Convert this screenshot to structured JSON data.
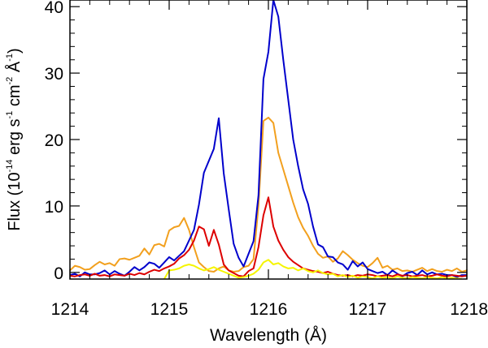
{
  "chart_data": {
    "type": "line",
    "title": "",
    "xlabel": "Wavelength (Å)",
    "ylabel_parts": {
      "prefix": "Flux (10",
      "exp1": "-14",
      "mid1": " erg s",
      "exp2": "-1",
      "mid2": " cm",
      "exp3": "-2",
      "mid3": " Å",
      "exp4": "-1",
      "suffix": ")"
    },
    "xlim": [
      1214,
      1218
    ],
    "ylim": [
      -1,
      41
    ],
    "xticks": [
      1214,
      1215,
      1216,
      1217,
      1218
    ],
    "xtick_labels": [
      "1214",
      "1215",
      "1216",
      "1217",
      "1218"
    ],
    "yticks": [
      0,
      10,
      20,
      30,
      40
    ],
    "ytick_labels": [
      "0",
      "10",
      "20",
      "30",
      "40"
    ],
    "grid": false,
    "series": [
      {
        "name": "orange",
        "color": "#f2a01e",
        "x": [
          1214.0,
          1214.05,
          1214.1,
          1214.15,
          1214.2,
          1214.25,
          1214.3,
          1214.35,
          1214.4,
          1214.45,
          1214.5,
          1214.55,
          1214.6,
          1214.65,
          1214.7,
          1214.75,
          1214.8,
          1214.85,
          1214.9,
          1214.95,
          1215.0,
          1215.05,
          1215.1,
          1215.15,
          1215.2,
          1215.25,
          1215.3,
          1215.35,
          1215.4,
          1215.45,
          1215.5,
          1215.55,
          1215.6,
          1215.65,
          1215.7,
          1215.75,
          1215.8,
          1215.85,
          1215.9,
          1215.95,
          1216.0,
          1216.05,
          1216.1,
          1216.15,
          1216.2,
          1216.25,
          1216.3,
          1216.35,
          1216.4,
          1216.45,
          1216.5,
          1216.55,
          1216.6,
          1216.65,
          1216.7,
          1216.75,
          1216.8,
          1216.85,
          1216.9,
          1216.95,
          1217.0,
          1217.05,
          1217.1,
          1217.15,
          1217.2,
          1217.25,
          1217.3,
          1217.35,
          1217.4,
          1217.45,
          1217.5,
          1217.55,
          1217.6,
          1217.65,
          1217.7,
          1217.75,
          1217.8,
          1217.85,
          1217.9,
          1217.95,
          1218.0
        ],
        "y": [
          0.3,
          1.0,
          0.8,
          0.4,
          0.5,
          1.1,
          1.6,
          1.2,
          1.4,
          1.0,
          2.0,
          2.1,
          1.9,
          2.2,
          2.5,
          3.6,
          2.7,
          4.1,
          4.3,
          3.9,
          6.3,
          6.8,
          7.0,
          8.2,
          6.4,
          3.8,
          1.5,
          0.8,
          0.2,
          0.1,
          0.6,
          0.9,
          0.3,
          0.1,
          0.2,
          0.8,
          1.0,
          2.0,
          10.0,
          22.8,
          23.3,
          22.5,
          18.0,
          15.5,
          13.0,
          10.5,
          8.3,
          6.7,
          5.5,
          4.0,
          2.8,
          2.2,
          2.4,
          1.6,
          2.1,
          3.2,
          2.6,
          1.9,
          1.4,
          1.0,
          0.8,
          1.4,
          2.2,
          0.7,
          1.0,
          0.4,
          0.6,
          0.2,
          0.3,
          0.1,
          0.4,
          0.7,
          0.2,
          0.5,
          0.2,
          0.1,
          0.4,
          0.2,
          0.6,
          0.1,
          0.3
        ]
      },
      {
        "name": "blue",
        "color": "#0000cc",
        "x": [
          1214.0,
          1214.05,
          1214.1,
          1214.15,
          1214.2,
          1214.25,
          1214.3,
          1214.35,
          1214.4,
          1214.45,
          1214.5,
          1214.55,
          1214.6,
          1214.65,
          1214.7,
          1214.75,
          1214.8,
          1214.85,
          1214.9,
          1214.95,
          1215.0,
          1215.05,
          1215.1,
          1215.15,
          1215.2,
          1215.25,
          1215.3,
          1215.35,
          1215.4,
          1215.45,
          1215.5,
          1215.55,
          1215.6,
          1215.65,
          1215.7,
          1215.75,
          1215.8,
          1215.85,
          1215.9,
          1215.95,
          1216.0,
          1216.05,
          1216.1,
          1216.15,
          1216.2,
          1216.25,
          1216.3,
          1216.35,
          1216.4,
          1216.45,
          1216.5,
          1216.55,
          1216.6,
          1216.65,
          1216.7,
          1216.75,
          1216.8,
          1216.85,
          1216.9,
          1216.95,
          1217.0,
          1217.05,
          1217.1,
          1217.15,
          1217.2,
          1217.25,
          1217.3,
          1217.35,
          1217.4,
          1217.45,
          1217.5,
          1217.55,
          1217.6,
          1217.65,
          1217.7,
          1217.75,
          1217.8,
          1217.85,
          1217.9,
          1217.95,
          1218.0
        ],
        "y": [
          -0.4,
          -0.2,
          -0.6,
          0.0,
          -0.3,
          -0.3,
          -0.1,
          0.3,
          -0.3,
          0.2,
          -0.2,
          -0.5,
          0.1,
          0.8,
          0.3,
          0.8,
          1.5,
          1.3,
          0.7,
          1.5,
          2.3,
          1.8,
          2.5,
          3.2,
          4.8,
          6.4,
          10.2,
          15.0,
          16.8,
          18.6,
          23.2,
          14.9,
          9.5,
          4.3,
          2.2,
          0.9,
          2.8,
          4.7,
          11.6,
          29.1,
          33.2,
          41.0,
          38.5,
          32.0,
          26.0,
          20.0,
          16.0,
          12.5,
          10.3,
          6.9,
          4.2,
          3.8,
          2.4,
          2.3,
          1.5,
          1.2,
          0.4,
          1.7,
          0.9,
          1.5,
          0.5,
          0.2,
          -0.1,
          0.1,
          -0.4,
          0.3,
          -0.2,
          -0.6,
          -0.1,
          0.1,
          -0.4,
          0.3,
          -0.3,
          0.0,
          -0.3,
          -0.2,
          -0.4,
          -0.4,
          -0.7,
          -0.4,
          -0.4
        ]
      },
      {
        "name": "red",
        "color": "#dd0000",
        "x": [
          1214.0,
          1214.05,
          1214.1,
          1214.15,
          1214.2,
          1214.25,
          1214.3,
          1214.35,
          1214.4,
          1214.45,
          1214.5,
          1214.55,
          1214.6,
          1214.65,
          1214.7,
          1214.75,
          1214.8,
          1214.85,
          1214.9,
          1214.95,
          1215.0,
          1215.05,
          1215.1,
          1215.15,
          1215.2,
          1215.25,
          1215.3,
          1215.35,
          1215.4,
          1215.45,
          1215.5,
          1215.55,
          1215.6,
          1215.65,
          1215.7,
          1215.75,
          1215.8,
          1215.85,
          1215.9,
          1215.95,
          1216.0,
          1216.05,
          1216.1,
          1216.15,
          1216.2,
          1216.25,
          1216.3,
          1216.35,
          1216.4,
          1216.45,
          1216.5,
          1216.55,
          1216.6,
          1216.65,
          1216.7,
          1216.75,
          1216.8,
          1216.85,
          1216.9,
          1216.95,
          1217.0,
          1217.05,
          1217.1,
          1217.15,
          1217.2,
          1217.25,
          1217.3,
          1217.35,
          1217.4,
          1217.45,
          1217.5,
          1217.55,
          1217.6,
          1217.65,
          1217.7,
          1217.75,
          1217.8,
          1217.85,
          1217.9,
          1217.95,
          1218.0
        ],
        "y": [
          -0.5,
          -0.6,
          -0.4,
          -0.3,
          -0.5,
          -0.2,
          -0.5,
          -0.4,
          -0.6,
          -0.3,
          -0.4,
          -0.5,
          -0.2,
          -0.4,
          -0.1,
          -0.3,
          0.1,
          0.4,
          0.2,
          0.6,
          0.9,
          1.3,
          2.1,
          2.6,
          3.4,
          4.8,
          6.9,
          6.5,
          4.0,
          6.4,
          4.2,
          1.2,
          0.3,
          -0.1,
          -0.5,
          -0.6,
          0.2,
          0.6,
          3.8,
          8.6,
          11.3,
          6.9,
          4.8,
          3.4,
          2.3,
          1.6,
          1.1,
          0.6,
          0.4,
          0.2,
          0.1,
          -0.1,
          0.1,
          -0.2,
          -0.4,
          -0.5,
          -0.4,
          -0.6,
          -0.4,
          -0.5,
          -0.3,
          -0.4,
          -0.6,
          -0.5,
          -0.4,
          -0.6,
          -0.3,
          -0.5,
          -0.4,
          -0.6,
          -0.5,
          -0.4,
          -0.6,
          -0.5,
          -0.3,
          -0.5,
          -0.6,
          -0.4,
          -0.5,
          -0.6,
          -0.5
        ]
      },
      {
        "name": "yellow",
        "color": "#f5f500",
        "x": [
          1214.95,
          1215.0,
          1215.05,
          1215.1,
          1215.15,
          1215.2,
          1215.25,
          1215.3,
          1215.35,
          1215.4,
          1215.45,
          1215.5,
          1215.55,
          1215.6,
          1215.65,
          1215.7,
          1215.75,
          1215.8,
          1215.85,
          1215.9,
          1215.95,
          1216.0,
          1216.05,
          1216.1,
          1216.15,
          1216.2,
          1216.25,
          1216.3,
          1216.35,
          1216.4,
          1216.45,
          1216.5,
          1216.55,
          1216.6,
          1216.65,
          1216.7,
          1216.75,
          1216.8,
          1216.85,
          1216.9,
          1216.95,
          1217.0,
          1217.05,
          1217.1,
          1217.15,
          1217.2,
          1217.25,
          1217.3,
          1217.35,
          1217.4,
          1217.45,
          1217.5,
          1217.55,
          1217.6,
          1217.65,
          1217.7,
          1217.75,
          1217.8,
          1217.85,
          1217.9,
          1217.95
        ],
        "y": [
          -1,
          0.3,
          0.4,
          0.6,
          1.0,
          1.2,
          1.0,
          0.6,
          0.3,
          0.5,
          0.8,
          0.4,
          0.1,
          -0.2,
          -0.5,
          -0.8,
          -0.7,
          -0.5,
          -0.2,
          0.4,
          1.5,
          1.9,
          1.2,
          1.4,
          0.9,
          0.6,
          0.7,
          0.3,
          0.6,
          0.2,
          0.0,
          0.3,
          -0.1,
          -0.3,
          -0.2,
          -0.6,
          -0.4,
          -0.7,
          -0.5,
          -0.8,
          -0.6,
          -0.7,
          -0.9,
          -0.6,
          -0.8,
          -0.7,
          -0.9,
          -0.6,
          -0.8,
          -0.9,
          -0.7,
          -0.8,
          -0.9,
          -0.7,
          -0.8,
          -0.9,
          -0.7,
          -0.9,
          -0.8,
          -0.9,
          -1
        ]
      }
    ]
  }
}
